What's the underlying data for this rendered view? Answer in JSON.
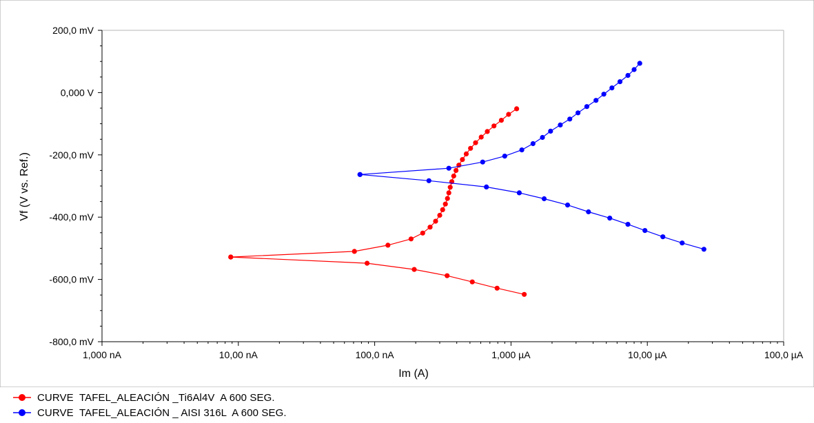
{
  "chart_data": {
    "type": "scatter",
    "title": "",
    "xlabel": "Im (A)",
    "ylabel": "Vf (V vs. Ref.)",
    "x_scale": "log",
    "xlim": [
      1e-09,
      0.0001
    ],
    "ylim": [
      -0.8,
      0.2
    ],
    "x_ticks": [
      {
        "value": 1e-09,
        "label": "1,000 nA"
      },
      {
        "value": 1e-08,
        "label": "10,00 nA"
      },
      {
        "value": 1e-07,
        "label": "100,0 nA"
      },
      {
        "value": 1e-06,
        "label": "1,000 µA"
      },
      {
        "value": 1e-05,
        "label": "10,00 µA"
      },
      {
        "value": 0.0001,
        "label": "100,0 µA"
      }
    ],
    "y_ticks": [
      {
        "value": 0.2,
        "label": "200,0 mV"
      },
      {
        "value": 0.0,
        "label": "0,000 V"
      },
      {
        "value": -0.2,
        "label": "-200,0 mV"
      },
      {
        "value": -0.4,
        "label": "-400,0 mV"
      },
      {
        "value": -0.6,
        "label": "-600,0 mV"
      },
      {
        "value": -0.8,
        "label": "-800,0 mV"
      }
    ],
    "grid": false,
    "legend_position": "bottom",
    "series": [
      {
        "name": "CURVE  TAFEL_ALEACIÓN _Ti6Al4V  A 600 SEG.",
        "color": "#ff0000",
        "cathodic": [
          [
            1.25e-06,
            -0.648
          ],
          [
            7.9e-07,
            -0.628
          ],
          [
            5.2e-07,
            -0.608
          ],
          [
            3.4e-07,
            -0.588
          ],
          [
            1.95e-07,
            -0.568
          ],
          [
            8.8e-08,
            -0.548
          ],
          [
            8.8e-09,
            -0.528
          ]
        ],
        "anodic": [
          [
            8.8e-09,
            -0.528
          ],
          [
            7.1e-08,
            -0.51
          ],
          [
            1.25e-07,
            -0.49
          ],
          [
            1.85e-07,
            -0.47
          ],
          [
            2.25e-07,
            -0.451
          ],
          [
            2.55e-07,
            -0.432
          ],
          [
            2.8e-07,
            -0.413
          ],
          [
            3e-07,
            -0.394
          ],
          [
            3.15e-07,
            -0.376
          ],
          [
            3.3e-07,
            -0.358
          ],
          [
            3.42e-07,
            -0.34
          ],
          [
            3.5e-07,
            -0.322
          ],
          [
            3.58e-07,
            -0.304
          ],
          [
            3.68e-07,
            -0.286
          ],
          [
            3.8e-07,
            -0.268
          ],
          [
            3.95e-07,
            -0.25
          ],
          [
            4.15e-07,
            -0.233
          ],
          [
            4.4e-07,
            -0.215
          ],
          [
            4.7e-07,
            -0.197
          ],
          [
            5.05e-07,
            -0.179
          ],
          [
            5.5e-07,
            -0.161
          ],
          [
            6.05e-07,
            -0.143
          ],
          [
            6.7e-07,
            -0.125
          ],
          [
            7.5e-07,
            -0.107
          ],
          [
            8.5e-07,
            -0.089
          ],
          [
            9.6e-07,
            -0.07
          ],
          [
            1.1e-06,
            -0.052
          ]
        ]
      },
      {
        "name": "CURVE  TAFEL_ALEACIÓN _ AISI 316L  A 600 SEG.",
        "color": "#0000ff",
        "cathodic": [
          [
            2.6e-05,
            -0.503
          ],
          [
            1.8e-05,
            -0.483
          ],
          [
            1.3e-05,
            -0.463
          ],
          [
            9.6e-06,
            -0.443
          ],
          [
            7.2e-06,
            -0.423
          ],
          [
            5.3e-06,
            -0.403
          ],
          [
            3.7e-06,
            -0.383
          ],
          [
            2.6e-06,
            -0.361
          ],
          [
            1.75e-06,
            -0.341
          ],
          [
            1.15e-06,
            -0.322
          ],
          [
            6.6e-07,
            -0.303
          ],
          [
            2.5e-07,
            -0.283
          ],
          [
            7.8e-08,
            -0.263
          ]
        ],
        "anodic": [
          [
            7.8e-08,
            -0.263
          ],
          [
            3.5e-07,
            -0.243
          ],
          [
            6.2e-07,
            -0.223
          ],
          [
            9e-07,
            -0.204
          ],
          [
            1.2e-06,
            -0.184
          ],
          [
            1.45e-06,
            -0.164
          ],
          [
            1.7e-06,
            -0.144
          ],
          [
            1.95e-06,
            -0.124
          ],
          [
            2.3e-06,
            -0.104
          ],
          [
            2.7e-06,
            -0.085
          ],
          [
            3.1e-06,
            -0.065
          ],
          [
            3.6e-06,
            -0.045
          ],
          [
            4.2e-06,
            -0.025
          ],
          [
            4.8e-06,
            -0.005
          ],
          [
            5.5e-06,
            0.015
          ],
          [
            6.3e-06,
            0.035
          ],
          [
            7.2e-06,
            0.055
          ],
          [
            8e-06,
            0.074
          ],
          [
            8.8e-06,
            0.094
          ]
        ]
      }
    ]
  }
}
